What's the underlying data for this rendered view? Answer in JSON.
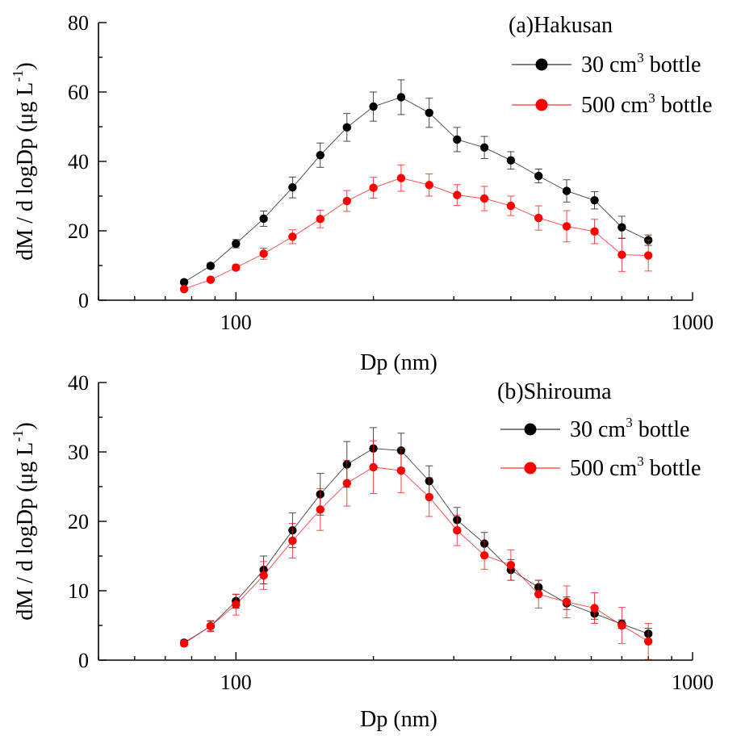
{
  "chart_data": [
    {
      "type": "scatter",
      "panel": "a",
      "title": "(a)Hakusan",
      "xlabel": "Dp (nm)",
      "ylabel": "dM / d logDp (μg L",
      "ylabel_sup": "-1",
      "ylabel_end": ")",
      "xscale": "log",
      "xlim": [
        50,
        1000
      ],
      "ylim": [
        0,
        80
      ],
      "xticks": [
        100,
        1000
      ],
      "xtick_labels": [
        "100",
        "1000"
      ],
      "yticks": [
        0,
        20,
        40,
        60,
        80
      ],
      "ytick_labels": [
        "0",
        "20",
        "40",
        "60",
        "80"
      ],
      "grid": false,
      "legend_position": "top-right",
      "x": [
        77,
        88,
        100,
        115,
        133,
        153,
        175,
        200,
        230,
        265,
        305,
        350,
        400,
        460,
        530,
        610,
        700,
        800
      ],
      "series": [
        {
          "name": "30 cm",
          "name_sup": "3",
          "name_end": " bottle",
          "color": "#000000",
          "y": [
            5.2,
            9.9,
            16.3,
            23.5,
            32.5,
            41.8,
            49.8,
            55.8,
            58.5,
            54.0,
            46.3,
            44.0,
            40.3,
            35.8,
            31.5,
            28.8,
            21.0,
            17.3
          ],
          "err": [
            0.6,
            0.8,
            1.2,
            2.2,
            3.0,
            3.5,
            4.0,
            4.2,
            5.0,
            4.2,
            3.5,
            3.2,
            2.5,
            2.0,
            3.2,
            2.5,
            3.2,
            1.5
          ]
        },
        {
          "name": "500 cm",
          "name_sup": "3",
          "name_end": " bottle",
          "color": "#ff0000",
          "y": [
            3.2,
            5.9,
            9.4,
            13.4,
            18.3,
            23.4,
            28.6,
            32.4,
            35.2,
            33.2,
            30.3,
            29.3,
            27.2,
            23.7,
            21.3,
            19.8,
            13.1,
            12.9
          ],
          "err": [
            0.6,
            0.7,
            0.8,
            1.6,
            2.0,
            2.5,
            3.0,
            3.0,
            3.8,
            3.2,
            3.0,
            3.5,
            2.8,
            3.5,
            4.5,
            3.5,
            4.8,
            4.5
          ]
        }
      ]
    },
    {
      "type": "scatter",
      "panel": "b",
      "title": "(b)Shirouma",
      "xlabel": "Dp (nm)",
      "ylabel": "dM / d logDp (μg L",
      "ylabel_sup": "-1",
      "ylabel_end": ")",
      "xscale": "log",
      "xlim": [
        50,
        1000
      ],
      "ylim": [
        0,
        40
      ],
      "xticks": [
        100,
        1000
      ],
      "xtick_labels": [
        "100",
        "1000"
      ],
      "yticks": [
        0,
        10,
        20,
        30,
        40
      ],
      "ytick_labels": [
        "0",
        "10",
        "20",
        "30",
        "40"
      ],
      "grid": false,
      "legend_position": "top-right",
      "x": [
        77,
        88,
        100,
        115,
        133,
        153,
        175,
        200,
        230,
        265,
        305,
        350,
        400,
        460,
        530,
        610,
        700,
        800
      ],
      "series": [
        {
          "name": "30 cm",
          "name_sup": "3",
          "name_end": " bottle",
          "color": "#000000",
          "y": [
            2.5,
            4.9,
            8.5,
            13.0,
            18.7,
            23.9,
            28.2,
            30.5,
            30.2,
            25.8,
            20.2,
            16.8,
            13.0,
            10.5,
            8.2,
            6.7,
            5.2,
            3.8
          ],
          "err": [
            0.4,
            0.7,
            1.0,
            2.0,
            2.5,
            3.0,
            3.3,
            3.0,
            2.5,
            2.2,
            1.8,
            1.6,
            1.5,
            1.0,
            0.9,
            0.8,
            0.6,
            0.8
          ]
        },
        {
          "name": "500 cm",
          "name_sup": "3",
          "name_end": " bottle",
          "color": "#ff0000",
          "y": [
            2.4,
            4.9,
            8.0,
            12.2,
            17.2,
            21.7,
            25.5,
            27.8,
            27.3,
            23.5,
            18.7,
            15.1,
            13.7,
            9.5,
            8.4,
            7.5,
            5.0,
            2.7
          ],
          "err": [
            0.4,
            0.8,
            1.5,
            2.0,
            2.5,
            3.0,
            3.3,
            3.8,
            3.2,
            2.8,
            2.2,
            2.0,
            2.2,
            2.0,
            2.3,
            2.2,
            2.6,
            2.6
          ]
        }
      ]
    }
  ]
}
